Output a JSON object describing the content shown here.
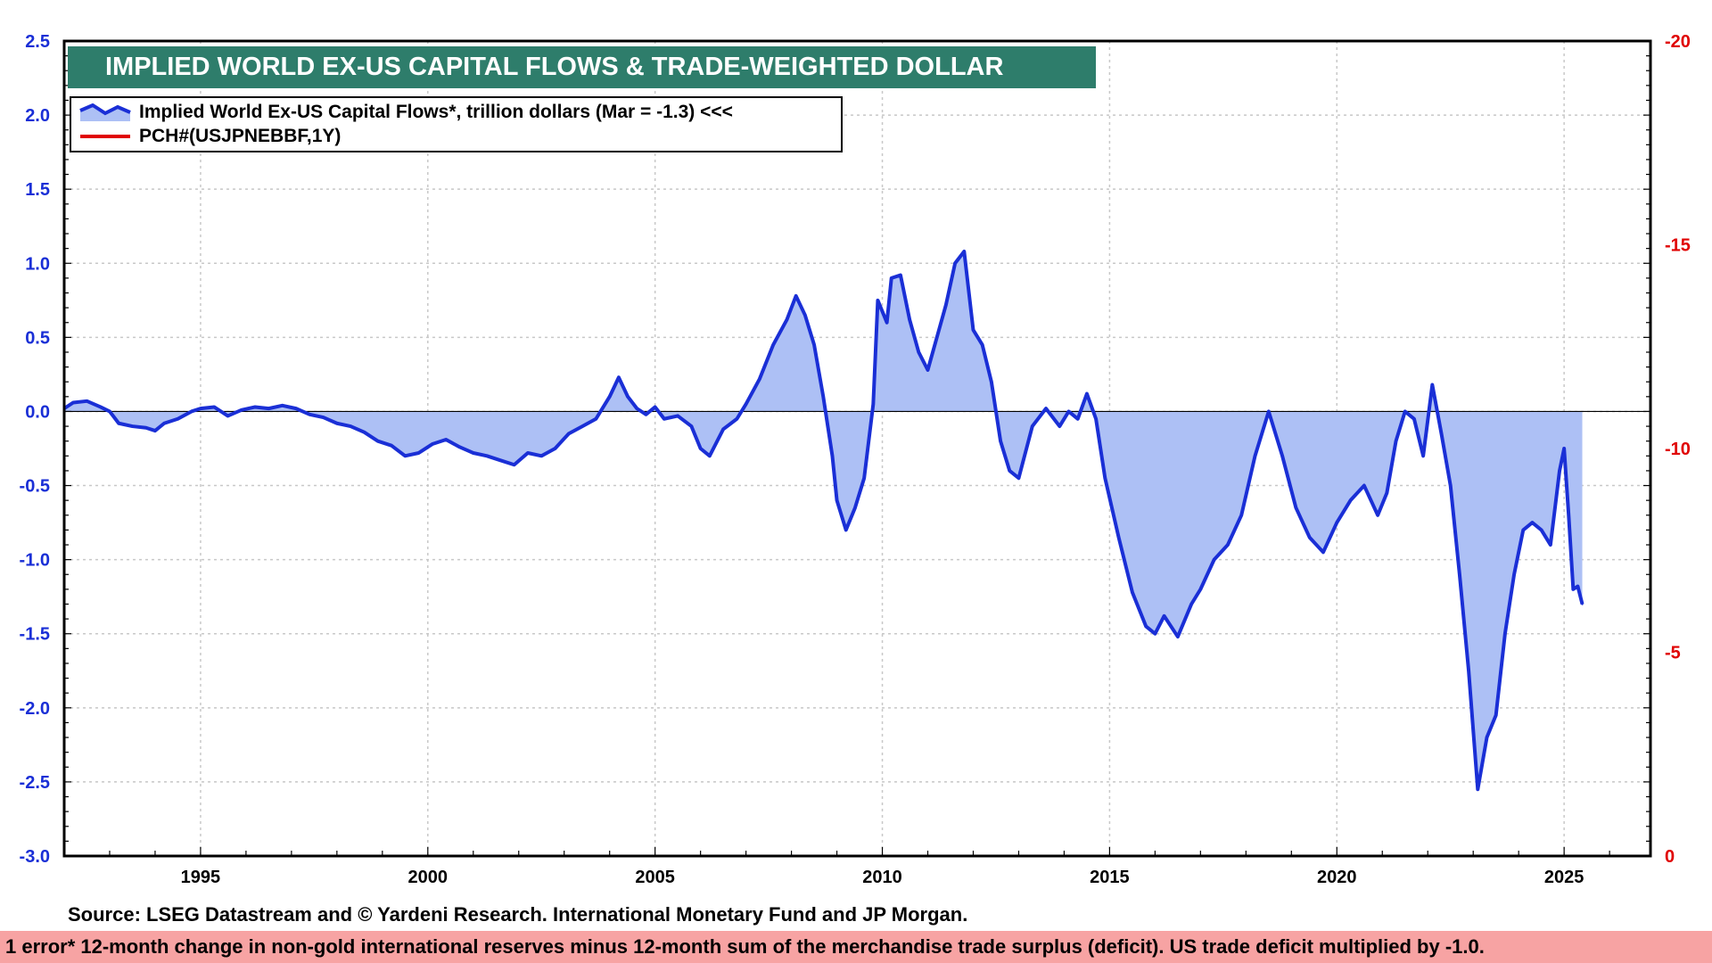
{
  "title": "IMPLIED WORLD EX-US CAPITAL FLOWS & TRADE-WEIGHTED DOLLAR",
  "legend": {
    "series1": "Implied World Ex-US Capital Flows*, trillion dollars (Mar = -1.3) <<<",
    "series2": "PCH#(USJPNEBBF,1Y)"
  },
  "source": "Source: LSEG Datastream and © Yardeni Research. International Monetary Fund and JP Morgan.",
  "footnote": "1 error* 12-month change in non-gold international reserves minus 12-month sum of the merchandise trade surplus (deficit). US trade deficit multiplied by -1.0.",
  "colors": {
    "series1_line": "#1a2fd6",
    "series1_fill": "#adc0f5",
    "series2_line": "#e00000",
    "title_bg": "#2e7d6b",
    "footnote_bg": "#f7a3a3"
  },
  "chart_data": {
    "type": "area",
    "xlim": [
      1992.0,
      2026.9
    ],
    "ylim": [
      -3.0,
      2.5
    ],
    "ylim_right": [
      0,
      -20
    ],
    "x_ticks": [
      1995,
      2000,
      2005,
      2010,
      2015,
      2020,
      2025
    ],
    "y_ticks_left": [
      "2.5",
      "2.0",
      "1.5",
      "1.0",
      "0.5",
      "0.0",
      "-0.5",
      "-1.0",
      "-1.5",
      "-2.0",
      "-2.5",
      "-3.0"
    ],
    "y_ticks_right": [
      "-20",
      "-15",
      "-10",
      "-5",
      "0"
    ],
    "grid": true,
    "legend_position": "top-left",
    "series": [
      {
        "name": "Implied World Ex-US Capital Flows*, trillion dollars (Mar = -1.3) <<<",
        "axis": "left",
        "points": [
          [
            1992.0,
            0.02
          ],
          [
            1992.2,
            0.06
          ],
          [
            1992.5,
            0.07
          ],
          [
            1992.8,
            0.03
          ],
          [
            1993.0,
            0.0
          ],
          [
            1993.2,
            -0.08
          ],
          [
            1993.5,
            -0.1
          ],
          [
            1993.8,
            -0.11
          ],
          [
            1994.0,
            -0.13
          ],
          [
            1994.2,
            -0.08
          ],
          [
            1994.5,
            -0.05
          ],
          [
            1994.8,
            0.0
          ],
          [
            1995.0,
            0.02
          ],
          [
            1995.3,
            0.03
          ],
          [
            1995.6,
            -0.03
          ],
          [
            1995.9,
            0.01
          ],
          [
            1996.2,
            0.03
          ],
          [
            1996.5,
            0.02
          ],
          [
            1996.8,
            0.04
          ],
          [
            1997.1,
            0.02
          ],
          [
            1997.4,
            -0.02
          ],
          [
            1997.7,
            -0.04
          ],
          [
            1998.0,
            -0.08
          ],
          [
            1998.3,
            -0.1
          ],
          [
            1998.6,
            -0.14
          ],
          [
            1998.9,
            -0.2
          ],
          [
            1999.2,
            -0.23
          ],
          [
            1999.5,
            -0.3
          ],
          [
            1999.8,
            -0.28
          ],
          [
            2000.1,
            -0.22
          ],
          [
            2000.4,
            -0.19
          ],
          [
            2000.7,
            -0.24
          ],
          [
            2001.0,
            -0.28
          ],
          [
            2001.3,
            -0.3
          ],
          [
            2001.6,
            -0.33
          ],
          [
            2001.9,
            -0.36
          ],
          [
            2002.2,
            -0.28
          ],
          [
            2002.5,
            -0.3
          ],
          [
            2002.8,
            -0.25
          ],
          [
            2003.1,
            -0.15
          ],
          [
            2003.4,
            -0.1
          ],
          [
            2003.7,
            -0.05
          ],
          [
            2004.0,
            0.1
          ],
          [
            2004.2,
            0.23
          ],
          [
            2004.4,
            0.1
          ],
          [
            2004.6,
            0.02
          ],
          [
            2004.8,
            -0.02
          ],
          [
            2005.0,
            0.03
          ],
          [
            2005.2,
            -0.05
          ],
          [
            2005.5,
            -0.03
          ],
          [
            2005.8,
            -0.1
          ],
          [
            2006.0,
            -0.25
          ],
          [
            2006.2,
            -0.3
          ],
          [
            2006.5,
            -0.12
          ],
          [
            2006.8,
            -0.05
          ],
          [
            2007.0,
            0.05
          ],
          [
            2007.3,
            0.22
          ],
          [
            2007.6,
            0.45
          ],
          [
            2007.9,
            0.62
          ],
          [
            2008.1,
            0.78
          ],
          [
            2008.3,
            0.65
          ],
          [
            2008.5,
            0.45
          ],
          [
            2008.7,
            0.1
          ],
          [
            2008.9,
            -0.3
          ],
          [
            2009.0,
            -0.6
          ],
          [
            2009.2,
            -0.8
          ],
          [
            2009.4,
            -0.65
          ],
          [
            2009.6,
            -0.45
          ],
          [
            2009.8,
            0.05
          ],
          [
            2009.9,
            0.75
          ],
          [
            2010.1,
            0.6
          ],
          [
            2010.2,
            0.9
          ],
          [
            2010.4,
            0.92
          ],
          [
            2010.6,
            0.62
          ],
          [
            2010.8,
            0.4
          ],
          [
            2011.0,
            0.28
          ],
          [
            2011.2,
            0.5
          ],
          [
            2011.4,
            0.72
          ],
          [
            2011.6,
            1.0
          ],
          [
            2011.8,
            1.08
          ],
          [
            2012.0,
            0.55
          ],
          [
            2012.2,
            0.45
          ],
          [
            2012.4,
            0.2
          ],
          [
            2012.6,
            -0.2
          ],
          [
            2012.8,
            -0.4
          ],
          [
            2013.0,
            -0.45
          ],
          [
            2013.3,
            -0.1
          ],
          [
            2013.6,
            0.02
          ],
          [
            2013.9,
            -0.1
          ],
          [
            2014.1,
            0.0
          ],
          [
            2014.3,
            -0.05
          ],
          [
            2014.5,
            0.12
          ],
          [
            2014.7,
            -0.05
          ],
          [
            2014.9,
            -0.45
          ],
          [
            2015.2,
            -0.85
          ],
          [
            2015.5,
            -1.22
          ],
          [
            2015.8,
            -1.45
          ],
          [
            2016.0,
            -1.5
          ],
          [
            2016.2,
            -1.38
          ],
          [
            2016.5,
            -1.52
          ],
          [
            2016.8,
            -1.3
          ],
          [
            2017.0,
            -1.2
          ],
          [
            2017.3,
            -1.0
          ],
          [
            2017.6,
            -0.9
          ],
          [
            2017.9,
            -0.7
          ],
          [
            2018.2,
            -0.3
          ],
          [
            2018.5,
            0.0
          ],
          [
            2018.8,
            -0.3
          ],
          [
            2019.1,
            -0.65
          ],
          [
            2019.4,
            -0.85
          ],
          [
            2019.7,
            -0.95
          ],
          [
            2020.0,
            -0.75
          ],
          [
            2020.3,
            -0.6
          ],
          [
            2020.6,
            -0.5
          ],
          [
            2020.9,
            -0.7
          ],
          [
            2021.1,
            -0.55
          ],
          [
            2021.3,
            -0.2
          ],
          [
            2021.5,
            0.0
          ],
          [
            2021.7,
            -0.05
          ],
          [
            2021.9,
            -0.3
          ],
          [
            2022.1,
            0.18
          ],
          [
            2022.3,
            -0.15
          ],
          [
            2022.5,
            -0.5
          ],
          [
            2022.7,
            -1.1
          ],
          [
            2022.9,
            -1.75
          ],
          [
            2023.1,
            -2.55
          ],
          [
            2023.3,
            -2.2
          ],
          [
            2023.5,
            -2.05
          ],
          [
            2023.7,
            -1.5
          ],
          [
            2023.9,
            -1.1
          ],
          [
            2024.1,
            -0.8
          ],
          [
            2024.3,
            -0.75
          ],
          [
            2024.5,
            -0.8
          ],
          [
            2024.7,
            -0.9
          ],
          [
            2024.9,
            -0.4
          ],
          [
            2025.0,
            -0.25
          ],
          [
            2025.1,
            -0.7
          ],
          [
            2025.2,
            -1.2
          ],
          [
            2025.3,
            -1.18
          ],
          [
            2025.4,
            -1.3
          ]
        ]
      },
      {
        "name": "PCH#(USJPNEBBF,1Y)",
        "axis": "right",
        "points": []
      }
    ]
  }
}
